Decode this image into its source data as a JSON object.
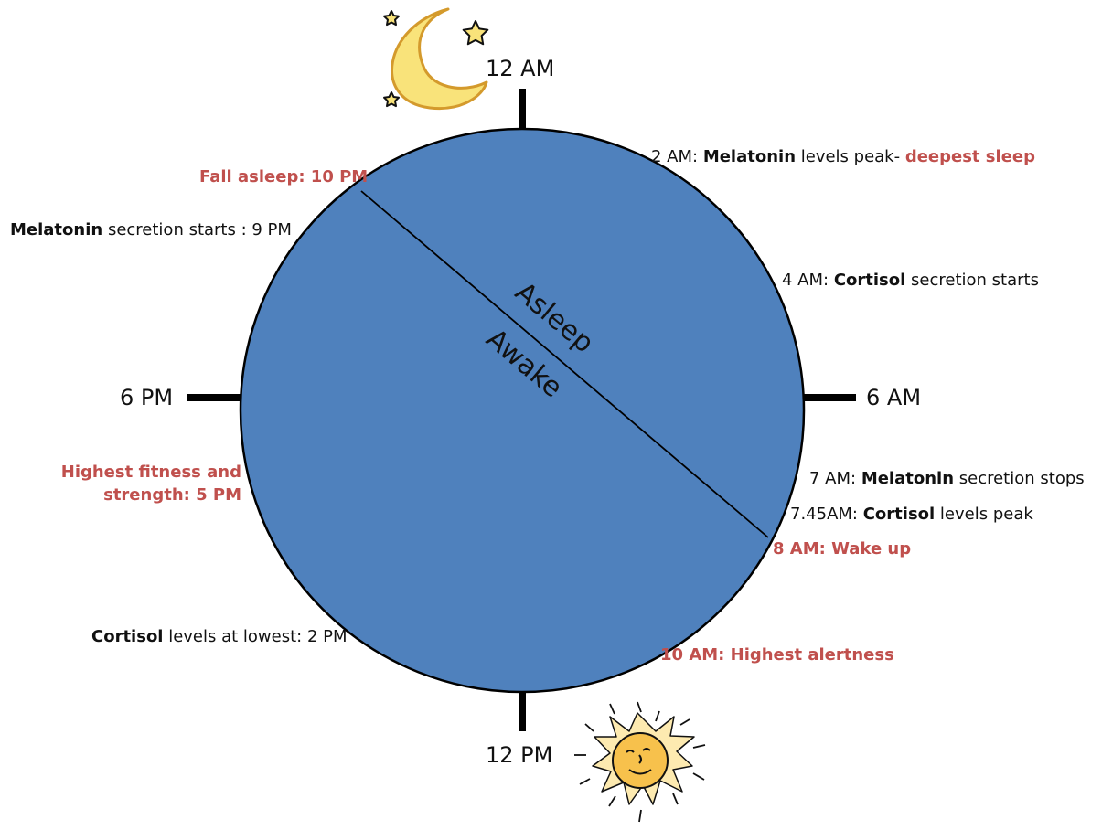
{
  "clock": {
    "hours": {
      "top": "12 AM",
      "right": "6 AM",
      "bottom": "12 PM",
      "left": "6 PM"
    },
    "zones": {
      "upper": "Asleep",
      "lower": "Awake"
    },
    "colors": {
      "circle_fill": "#4f81bd",
      "highlight_text": "#c0504d",
      "moon": "#f9e37a",
      "sun": "#f7c14c"
    }
  },
  "events": {
    "melatonin_peak": {
      "prefix": "2 AM: ",
      "bold": "Melatonin",
      "suffix": " levels peak- ",
      "highlight": "deepest sleep"
    },
    "cortisol_start": {
      "prefix": "4 AM: ",
      "bold": "Cortisol",
      "suffix": " secretion starts"
    },
    "melatonin_stop": {
      "prefix": "7 AM: ",
      "bold": "Melatonin",
      "suffix": " secretion stops"
    },
    "cortisol_peak": {
      "prefix": "7.45AM: ",
      "bold": "Cortisol",
      "suffix": " levels peak"
    },
    "wake_up": "8 AM: Wake up",
    "highest_alertness": "10 AM: Highest alertness",
    "cortisol_lowest": {
      "bold": "Cortisol",
      "suffix": " levels at lowest: 2 PM"
    },
    "fitness": {
      "line1": "Highest fitness and",
      "line2": "strength: 5 PM"
    },
    "melatonin_start": {
      "bold": "Melatonin",
      "suffix": " secretion starts : 9 PM"
    },
    "fall_asleep": "Fall asleep: 10 PM"
  },
  "icons": {
    "moon": "moon-icon",
    "stars": "star-icon",
    "sun": "sun-icon"
  }
}
